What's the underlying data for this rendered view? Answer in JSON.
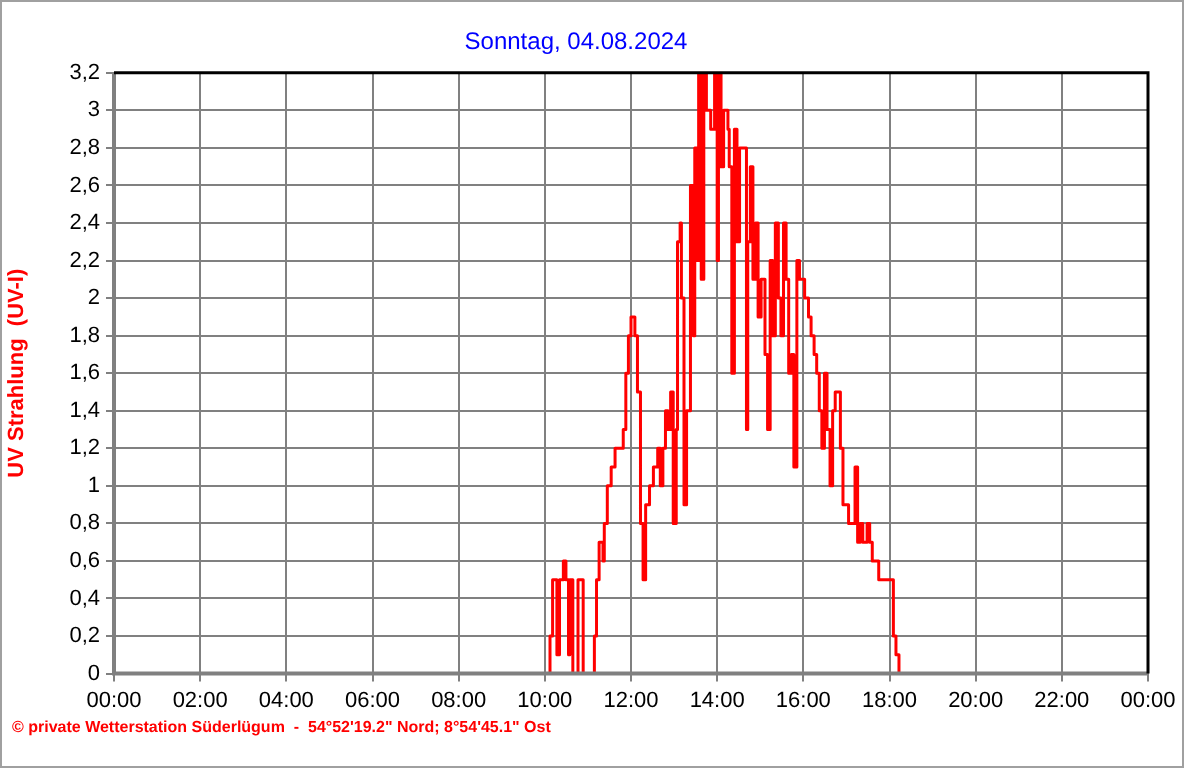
{
  "chart_data": {
    "type": "step",
    "title": "Sonntag, 04.08.2024",
    "ylabel": "UV Strahlung  (UV-I)",
    "annotations": [
      "© private Wetterstation Süderlügum  -  54°52'19.2\" Nord; 8°54'45.1\" Ost"
    ],
    "xlim": [
      0,
      24
    ],
    "xticks": [
      {
        "value": 0,
        "label": "00:00"
      },
      {
        "value": 2,
        "label": "02:00"
      },
      {
        "value": 4,
        "label": "04:00"
      },
      {
        "value": 6,
        "label": "06:00"
      },
      {
        "value": 8,
        "label": "08:00"
      },
      {
        "value": 10,
        "label": "10:00"
      },
      {
        "value": 12,
        "label": "12:00"
      },
      {
        "value": 14,
        "label": "14:00"
      },
      {
        "value": 16,
        "label": "16:00"
      },
      {
        "value": 18,
        "label": "18:00"
      },
      {
        "value": 20,
        "label": "20:00"
      },
      {
        "value": 22,
        "label": "22:00"
      },
      {
        "value": 24,
        "label": "00:00"
      }
    ],
    "ylim": [
      0,
      3.2
    ],
    "yticks": [
      0,
      {
        "value": 0.2,
        "label": "0,2"
      },
      {
        "value": 0.4,
        "label": "0,4"
      },
      {
        "value": 0.6,
        "label": "0,6"
      },
      {
        "value": 0.8,
        "label": "0,8"
      },
      1,
      {
        "value": 1.2,
        "label": "1,2"
      },
      {
        "value": 1.4,
        "label": "1,4"
      },
      {
        "value": 1.6,
        "label": "1,6"
      },
      {
        "value": 1.8,
        "label": "1,8"
      },
      2,
      {
        "value": 2.2,
        "label": "2,2"
      },
      {
        "value": 2.4,
        "label": "2,4"
      },
      {
        "value": 2.6,
        "label": "2,6"
      },
      {
        "value": 2.8,
        "label": "2,8"
      },
      3,
      {
        "value": 3.2,
        "label": "3,2"
      }
    ],
    "grid": true,
    "legend": false,
    "line_style": "solid",
    "marker": "none",
    "series": [
      {
        "color": "#ff0000",
        "x": [
          0,
          10.12,
          10.18,
          10.28,
          10.34,
          10.43,
          10.49,
          10.55,
          10.58,
          10.65,
          10.71,
          10.77,
          10.86,
          10.89,
          11.11,
          11.15,
          11.2,
          11.26,
          11.35,
          11.38,
          11.45,
          11.54,
          11.63,
          11.75,
          11.82,
          11.88,
          11.94,
          12,
          12.09,
          12.15,
          12.22,
          12.28,
          12.34,
          12.43,
          12.52,
          12.62,
          12.68,
          12.74,
          12.8,
          12.86,
          12.92,
          12.98,
          13.05,
          13.08,
          13.14,
          13.17,
          13.23,
          13.29,
          13.38,
          13.45,
          13.48,
          13.54,
          13.57,
          13.63,
          13.69,
          13.75,
          13.85,
          13.94,
          14,
          14.03,
          14.09,
          14.15,
          14.25,
          14.28,
          14.34,
          14.4,
          14.46,
          14.52,
          14.62,
          14.68,
          14.71,
          14.77,
          14.83,
          14.89,
          14.95,
          15.02,
          15.11,
          15.17,
          15.23,
          15.29,
          15.35,
          15.42,
          15.48,
          15.54,
          15.6,
          15.66,
          15.72,
          15.78,
          15.85,
          15.91,
          15.97,
          16.03,
          16.12,
          16.18,
          16.25,
          16.31,
          16.37,
          16.43,
          16.49,
          16.55,
          16.62,
          16.68,
          16.74,
          16.83,
          16.86,
          16.92,
          16.98,
          17.05,
          17.14,
          17.2,
          17.26,
          17.32,
          17.38,
          17.48,
          17.54,
          17.6,
          17.69,
          17.75,
          17.85,
          17.94,
          18.06,
          18.09,
          18.15,
          18.22,
          24
        ],
        "values": [
          0,
          0.2,
          0.5,
          0.1,
          0.5,
          0.6,
          0.5,
          0.1,
          0.5,
          0,
          0,
          0.5,
          0.5,
          0,
          0,
          0.2,
          0.5,
          0.7,
          0.6,
          0.8,
          1,
          1.1,
          1.2,
          1.2,
          1.3,
          1.6,
          1.8,
          1.9,
          1.8,
          1.5,
          0.8,
          0.5,
          0.9,
          1,
          1.1,
          1.2,
          1,
          1.2,
          1.4,
          1.3,
          1.5,
          0.8,
          1.3,
          2.3,
          2.4,
          2,
          0.9,
          1.4,
          2.6,
          1.8,
          2.8,
          2.2,
          3.2,
          2.1,
          3.2,
          3,
          2.9,
          3.2,
          2.2,
          3.2,
          2.7,
          3,
          2.9,
          2.7,
          1.6,
          2.9,
          2.3,
          2.8,
          2.8,
          1.3,
          2.3,
          2.7,
          2.1,
          2.4,
          1.9,
          2.1,
          1.7,
          1.3,
          2.2,
          1.8,
          2.4,
          2,
          1.8,
          2.4,
          2.1,
          1.6,
          1.7,
          1.1,
          2.2,
          2.1,
          2.1,
          2,
          1.9,
          1.8,
          1.7,
          1.6,
          1.4,
          1.2,
          1.6,
          1.3,
          1,
          1.4,
          1.5,
          1.5,
          1.2,
          0.9,
          0.9,
          0.8,
          0.8,
          1.1,
          0.7,
          0.8,
          0.7,
          0.8,
          0.7,
          0.6,
          0.6,
          0.5,
          0.5,
          0.5,
          0.5,
          0.2,
          0.1,
          0,
          0
        ]
      }
    ]
  }
}
